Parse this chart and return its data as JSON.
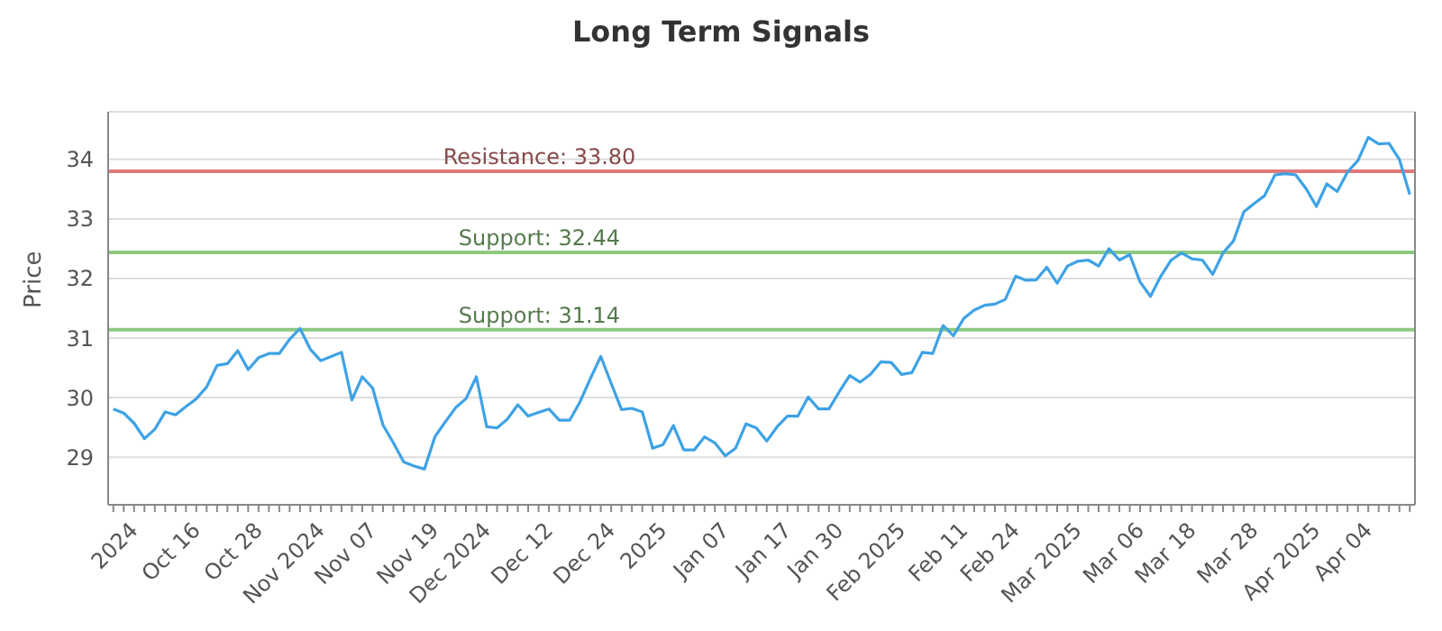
{
  "chart_data": {
    "type": "line",
    "title": "Long Term Signals",
    "ylabel": "Price",
    "categories": [
      null,
      null,
      "2024",
      null,
      null,
      null,
      null,
      null,
      "Oct 16",
      null,
      null,
      null,
      null,
      null,
      "Oct 28",
      null,
      null,
      null,
      null,
      null,
      "Nov 2024",
      null,
      null,
      null,
      null,
      "Nov 07",
      null,
      null,
      null,
      null,
      null,
      "Nov 19",
      null,
      null,
      null,
      null,
      "Dec 2024",
      null,
      null,
      null,
      null,
      null,
      "Dec 12",
      null,
      null,
      null,
      null,
      null,
      "Dec 24",
      null,
      null,
      null,
      null,
      "2025",
      null,
      null,
      null,
      null,
      null,
      "Jan 07",
      null,
      null,
      null,
      null,
      null,
      "Jan 17",
      null,
      null,
      null,
      null,
      "Jan 30",
      null,
      null,
      null,
      null,
      null,
      "Feb 2025",
      null,
      null,
      null,
      null,
      null,
      "Feb 11",
      null,
      null,
      null,
      null,
      "Feb 24",
      null,
      null,
      null,
      null,
      null,
      "Mar 2025",
      null,
      null,
      null,
      null,
      null,
      "Mar 06",
      null,
      null,
      null,
      null,
      "Mar 18",
      null,
      null,
      null,
      null,
      null,
      "Mar 28",
      null,
      null,
      null,
      null,
      null,
      "Apr 2025",
      null,
      null,
      null,
      null,
      "Apr 04",
      null,
      null,
      null,
      null
    ],
    "series": [
      {
        "color": "#3ea2e5",
        "values": [
          29.81,
          29.74,
          29.57,
          29.31,
          29.47,
          29.76,
          29.71,
          29.85,
          29.98,
          30.18,
          30.54,
          30.57,
          30.79,
          30.47,
          30.67,
          30.74,
          30.74,
          30.98,
          31.16,
          30.81,
          30.62,
          30.69,
          30.76,
          29.96,
          30.35,
          30.16,
          29.54,
          29.24,
          28.92,
          28.85,
          28.8,
          29.34,
          29.59,
          29.83,
          29.98,
          30.35,
          29.51,
          29.49,
          29.64,
          29.88,
          29.69,
          29.75,
          29.81,
          29.62,
          29.62,
          29.93,
          30.32,
          30.69,
          30.24,
          29.8,
          29.82,
          29.76,
          29.15,
          29.21,
          29.53,
          29.12,
          29.12,
          29.34,
          29.24,
          29.02,
          29.15,
          29.56,
          29.49,
          29.27,
          29.51,
          29.69,
          29.69,
          30.01,
          29.81,
          29.81,
          30.1,
          30.37,
          30.26,
          30.39,
          30.6,
          30.59,
          30.39,
          30.42,
          30.76,
          30.74,
          31.21,
          31.04,
          31.33,
          31.47,
          31.55,
          31.57,
          31.65,
          32.04,
          31.97,
          31.98,
          32.19,
          31.92,
          32.21,
          32.29,
          32.31,
          32.21,
          32.5,
          32.31,
          32.4,
          31.94,
          31.7,
          32.04,
          32.31,
          32.43,
          32.33,
          32.31,
          32.07,
          32.43,
          32.63,
          33.12,
          33.26,
          33.39,
          33.74,
          33.76,
          33.74,
          33.51,
          33.21,
          33.59,
          33.46,
          33.79,
          33.98,
          34.37,
          34.26,
          34.27,
          34.0,
          33.41
        ]
      }
    ],
    "ylim": [
      28.2,
      34.8
    ],
    "yticks": [
      29,
      30,
      31,
      32,
      33,
      34
    ],
    "grid": "y",
    "marker": "none",
    "line_style": "solid",
    "ref_lines": [
      {
        "axis": "y",
        "value": 33.8,
        "label": "Resistance: 33.80",
        "color": "#e07a7a"
      },
      {
        "axis": "y",
        "value": 32.44,
        "label": "Support: 32.44",
        "color": "#8dc97f"
      },
      {
        "axis": "y",
        "value": 31.14,
        "label": "Support: 31.14",
        "color": "#8dc97f"
      }
    ]
  }
}
